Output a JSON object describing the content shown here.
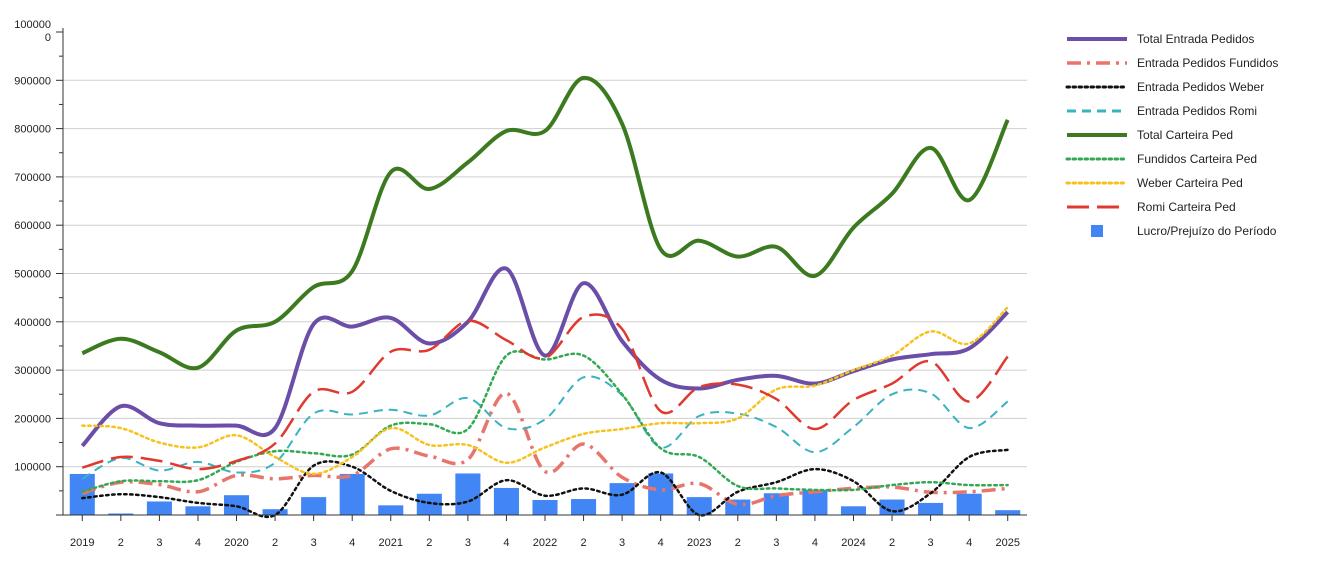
{
  "chart_data": {
    "type": "line",
    "categories": [
      "2019",
      "2",
      "3",
      "4",
      "2020",
      "2",
      "3",
      "4",
      "2021",
      "2",
      "3",
      "4",
      "2022",
      "2",
      "3",
      "4",
      "2023",
      "2",
      "3",
      "4",
      "2024",
      "2",
      "3",
      "4",
      "2025"
    ],
    "ylim": [
      0,
      1000000
    ],
    "yticks": [
      100000,
      200000,
      300000,
      400000,
      500000,
      600000,
      700000,
      800000,
      900000
    ],
    "ytick_labels": [
      "100000",
      "200000",
      "300000",
      "400000",
      "500000",
      "600000",
      "700000",
      "800000",
      "900000"
    ],
    "top_tick_label": [
      "100000",
      "0"
    ],
    "grid": true,
    "legend_position": "right",
    "series": [
      {
        "name": "Total Entrada Pedidos",
        "kind": "line",
        "color": "#6a4ea8",
        "dash": "solid",
        "width": 4,
        "values": [
          143000,
          225000,
          190000,
          185000,
          185000,
          180000,
          395000,
          390000,
          408000,
          355000,
          400000,
          510000,
          330000,
          480000,
          360000,
          280000,
          262000,
          280000,
          288000,
          272000,
          298000,
          322000,
          333000,
          345000,
          420000
        ]
      },
      {
        "name": "Entrada Pedidos Fundidos",
        "kind": "line",
        "color": "#e8756c",
        "dash": "dashdot",
        "width": 3.5,
        "values": [
          45000,
          68000,
          63000,
          48000,
          82000,
          75000,
          82000,
          82000,
          137000,
          122000,
          115000,
          252000,
          90000,
          147000,
          78000,
          52000,
          65000,
          22000,
          40000,
          48000,
          55000,
          58000,
          47000,
          48000,
          55000
        ]
      },
      {
        "name": "Entrada Pedidos Weber",
        "kind": "line",
        "color": "#111111",
        "dash": "dotted",
        "width": 2.5,
        "values": [
          35000,
          43000,
          37000,
          25000,
          18000,
          0,
          102000,
          100000,
          50000,
          25000,
          28000,
          72000,
          40000,
          55000,
          42000,
          88000,
          0,
          48000,
          68000,
          95000,
          70000,
          8000,
          45000,
          120000,
          135000
        ]
      },
      {
        "name": "Entrada Pedidos Romi",
        "kind": "line",
        "color": "#3ab3c0",
        "dash": "dashed",
        "width": 2,
        "values": [
          75000,
          118000,
          92000,
          110000,
          88000,
          108000,
          210000,
          208000,
          218000,
          206000,
          242000,
          180000,
          198000,
          285000,
          248000,
          140000,
          205000,
          210000,
          182000,
          130000,
          182000,
          250000,
          252000,
          180000,
          235000
        ]
      },
      {
        "name": "Total Carteira Ped",
        "kind": "line",
        "color": "#3b7a1f",
        "dash": "solid",
        "width": 4,
        "values": [
          335000,
          365000,
          337000,
          305000,
          382000,
          400000,
          472000,
          505000,
          710000,
          675000,
          730000,
          795000,
          795000,
          905000,
          810000,
          550000,
          568000,
          535000,
          555000,
          495000,
          595000,
          665000,
          760000,
          652000,
          818000
        ]
      },
      {
        "name": "Fundidos Carteira Ped",
        "kind": "line",
        "color": "#33a852",
        "dash": "dotted",
        "width": 2.5,
        "values": [
          48000,
          70000,
          70000,
          72000,
          110000,
          132000,
          128000,
          125000,
          185000,
          188000,
          178000,
          330000,
          322000,
          330000,
          250000,
          138000,
          120000,
          60000,
          55000,
          52000,
          52000,
          62000,
          68000,
          62000,
          62000
        ]
      },
      {
        "name": "Weber Carteira Ped",
        "kind": "line",
        "color": "#f7c21d",
        "dash": "dotted",
        "width": 2.5,
        "values": [
          185000,
          180000,
          150000,
          140000,
          165000,
          120000,
          85000,
          120000,
          180000,
          145000,
          145000,
          108000,
          140000,
          168000,
          178000,
          190000,
          190000,
          200000,
          260000,
          268000,
          300000,
          330000,
          380000,
          355000,
          430000
        ]
      },
      {
        "name": "Romi Carteira Ped",
        "kind": "line",
        "color": "#e0392f",
        "dash": "longdash",
        "width": 2.5,
        "values": [
          98000,
          120000,
          112000,
          95000,
          112000,
          148000,
          255000,
          255000,
          338000,
          342000,
          402000,
          362000,
          325000,
          410000,
          385000,
          215000,
          265000,
          270000,
          240000,
          178000,
          238000,
          272000,
          318000,
          235000,
          328000
        ]
      },
      {
        "name": "Lucro/Prejuízo do Período",
        "kind": "bar",
        "color": "#4285f4",
        "values": [
          85000,
          0,
          28000,
          18000,
          41000,
          12000,
          37000,
          85000,
          20000,
          44000,
          86000,
          56000,
          31000,
          33000,
          66000,
          86000,
          37000,
          32000,
          45000,
          52000,
          18000,
          32000,
          25000,
          44000,
          10000
        ]
      }
    ]
  }
}
